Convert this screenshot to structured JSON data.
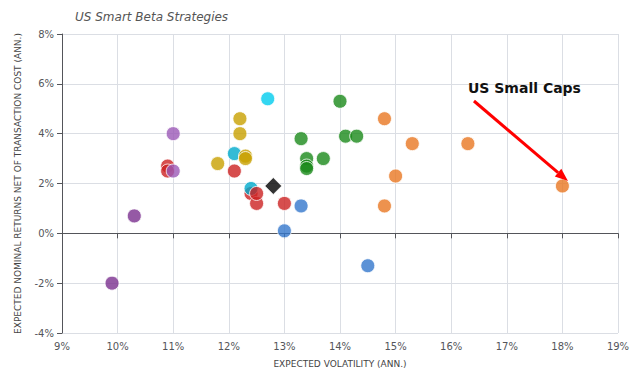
{
  "chart_data": {
    "type": "scatter",
    "title": "US Smart Beta Strategies",
    "xlabel": "EXPECTED VOLATILITY (ANN.)",
    "ylabel": "EXPECTED NOMINAL RETURNS NET OF TRANSACTION COST (ANN.)",
    "xlim": [
      0.09,
      0.19
    ],
    "ylim": [
      -0.04,
      0.08
    ],
    "xticks": [
      {
        "value": 0.09,
        "label": "9%"
      },
      {
        "value": 0.1,
        "label": "10%"
      },
      {
        "value": 0.11,
        "label": "11%"
      },
      {
        "value": 0.12,
        "label": "12%"
      },
      {
        "value": 0.13,
        "label": "13%"
      },
      {
        "value": 0.14,
        "label": "14%"
      },
      {
        "value": 0.15,
        "label": "15%"
      },
      {
        "value": 0.16,
        "label": "16%"
      },
      {
        "value": 0.17,
        "label": "17%"
      },
      {
        "value": 0.18,
        "label": "18%"
      },
      {
        "value": 0.19,
        "label": "19%"
      }
    ],
    "yticks": [
      {
        "value": -0.04,
        "label": "-4%"
      },
      {
        "value": -0.02,
        "label": "-2%"
      },
      {
        "value": 0.0,
        "label": "0%"
      },
      {
        "value": 0.02,
        "label": "2%"
      },
      {
        "value": 0.04,
        "label": "4%"
      },
      {
        "value": 0.06,
        "label": "6%"
      },
      {
        "value": 0.08,
        "label": "8%"
      }
    ],
    "grid": true,
    "series": [
      {
        "marker": "circle",
        "x": [
          0.099,
          0.103,
          0.109,
          0.109,
          0.11,
          0.11,
          0.118,
          0.121,
          0.121,
          0.122,
          0.122,
          0.123,
          0.123,
          0.124,
          0.124,
          0.125,
          0.125,
          0.127
        ],
        "values": [
          -0.02,
          0.007,
          0.027,
          0.025,
          0.025,
          0.04,
          0.028,
          0.025,
          0.032,
          0.046,
          0.04,
          0.031,
          0.03,
          0.016,
          0.018,
          0.012,
          0.016,
          0.054
        ],
        "colors": [
          "#7b2f8e",
          "#7b2f8e",
          "#cc2222",
          "#cc2222",
          "#9b59b6",
          "#9b59b6",
          "#c8a000",
          "#cc2222",
          "#00aacc",
          "#c8a000",
          "#c8a000",
          "#c8a000",
          "#c8a000",
          "#cc2222",
          "#00aacc",
          "#cc2222",
          "#cc2222",
          "#00ccee"
        ]
      },
      {
        "marker": "diamond",
        "x": [
          0.128
        ],
        "values": [
          0.019
        ],
        "colors": [
          "#000000"
        ]
      },
      {
        "marker": "circle",
        "x": [
          0.13,
          0.13,
          0.133,
          0.133,
          0.134,
          0.134,
          0.134,
          0.137,
          0.14,
          0.141,
          0.143,
          0.145,
          0.148,
          0.148,
          0.15,
          0.153,
          0.163,
          0.18
        ],
        "values": [
          0.012,
          0.001,
          0.011,
          0.038,
          0.03,
          0.027,
          0.026,
          0.03,
          0.053,
          0.039,
          0.039,
          -0.013,
          0.046,
          0.011,
          0.023,
          0.036,
          0.036,
          0.019
        ],
        "colors": [
          "#cc2222",
          "#3377cc",
          "#3377cc",
          "#1a8a1a",
          "#1a8a1a",
          "#1a8a1a",
          "#1a8a1a",
          "#1a8a1a",
          "#1a8a1a",
          "#1a8a1a",
          "#1a8a1a",
          "#3377cc",
          "#e87722",
          "#e87722",
          "#e87722",
          "#e87722",
          "#e87722",
          "#e87722"
        ]
      }
    ],
    "annotations": [
      {
        "text": "US Small Caps",
        "x": 0.181,
        "y": 0.021
      }
    ]
  }
}
